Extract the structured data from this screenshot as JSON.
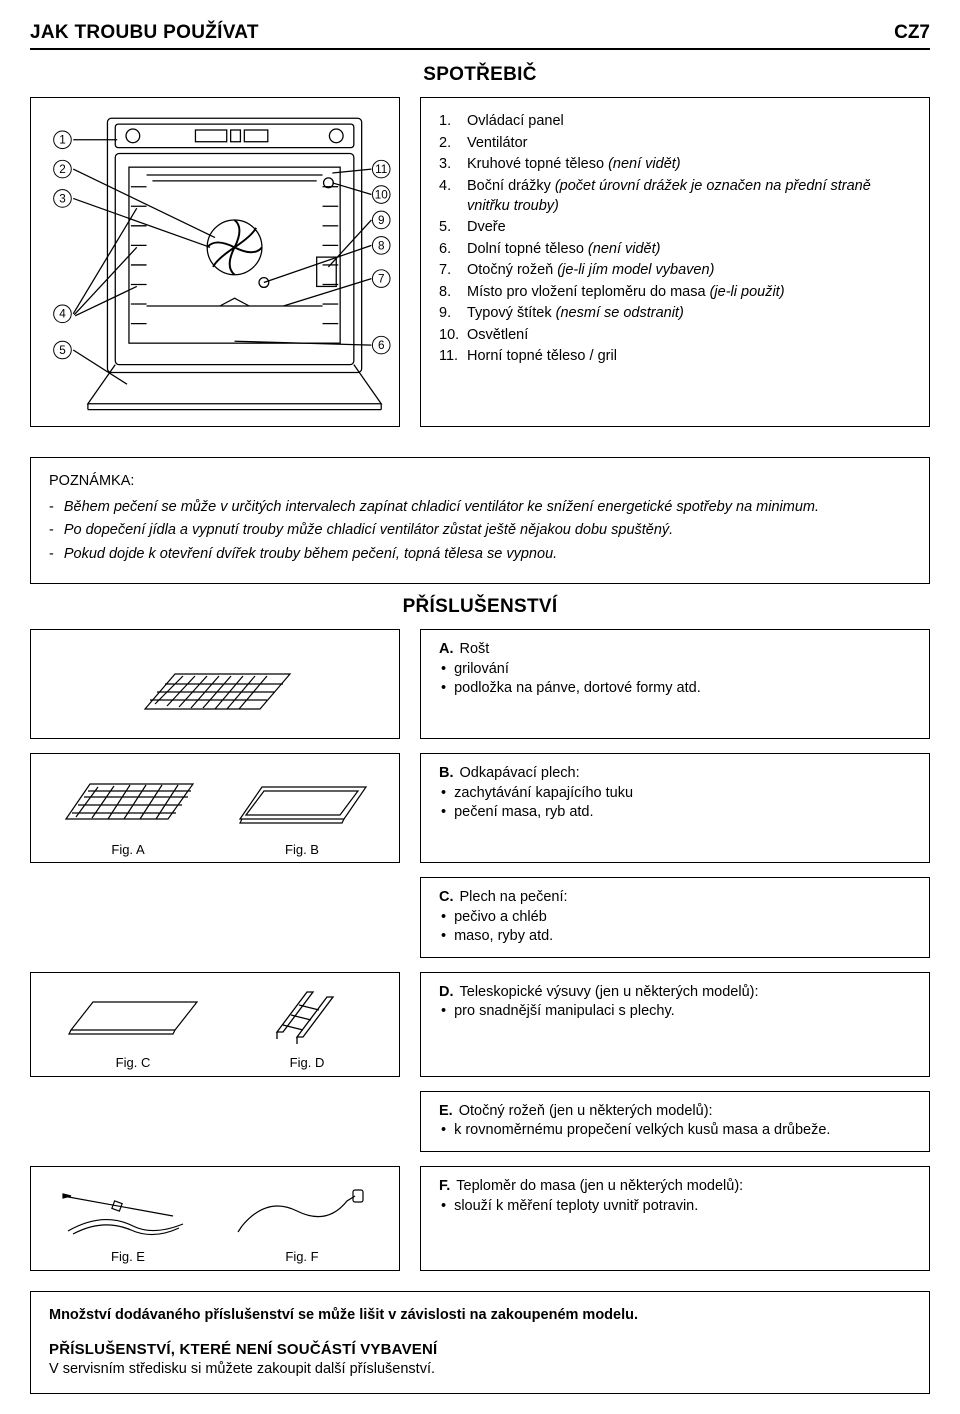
{
  "header": {
    "title": "JAK TROUBU POUŽÍVAT",
    "page": "CZ7"
  },
  "section_spotrebic": "SPOTŘEBIČ",
  "parts": [
    {
      "num": "1.",
      "text": "Ovládací panel"
    },
    {
      "num": "2.",
      "text": "Ventilátor"
    },
    {
      "num": "3.",
      "text": "Kruhové topné těleso ",
      "suffix_italic": "(není vidět)"
    },
    {
      "num": "4.",
      "text": "Boční drážky ",
      "suffix_italic": "(počet úrovní drážek je označen na přední straně vnitřku trouby)"
    },
    {
      "num": "5.",
      "text": "Dveře"
    },
    {
      "num": "6.",
      "text": "Dolní topné těleso ",
      "suffix_italic": "(není vidět)"
    },
    {
      "num": "7.",
      "text": "Otočný rožeň ",
      "suffix_italic": "(je-li jím model vybaven)"
    },
    {
      "num": "8.",
      "text": "Místo pro vložení teploměru do masa ",
      "suffix_italic": "(je-li použit)"
    },
    {
      "num": "9.",
      "text": "Typový štítek ",
      "suffix_italic": "(nesmí se odstranit)"
    },
    {
      "num": "10.",
      "text": "Osvětlení"
    },
    {
      "num": "11.",
      "text": "Horní topné těleso / gril"
    }
  ],
  "note": {
    "label": "POZNÁMKA:",
    "items": [
      "Během pečení se může v určitých intervalech zapínat chladicí ventilátor ke snížení energetické spotřeby na minimum.",
      "Po dopečení jídla a vypnutí trouby může chladicí ventilátor zůstat ještě nějakou dobu spuštěný.",
      "Pokud dojde k otevření dvířek trouby během pečení, topná tělesa se vypnou."
    ]
  },
  "section_accessories": "PŘÍSLUŠENSTVÍ",
  "acc": {
    "a": {
      "lead": "A.",
      "title": "Rošt",
      "items": [
        "grilování",
        "podložka na pánve, dortové formy atd."
      ]
    },
    "b": {
      "lead": "B.",
      "title": "Odkapávací plech:",
      "items": [
        "zachytávání kapajícího tuku",
        "pečení masa, ryb atd."
      ]
    },
    "c": {
      "lead": "C.",
      "title": "Plech na pečení:",
      "items": [
        "pečivo a chléb",
        "maso, ryby atd."
      ]
    },
    "d": {
      "lead": "D.",
      "title": "Teleskopické výsuvy (jen u některých modelů):",
      "items": [
        "pro snadnější manipulaci s plechy."
      ]
    },
    "e": {
      "lead": "E.",
      "title": "Otočný rožeň (jen u některých modelů):",
      "items": [
        "k rovnoměrnému propečení velkých kusů masa a drůbeže."
      ]
    },
    "f": {
      "lead": "F.",
      "title": "Teploměr do masa (jen u některých modelů):",
      "items": [
        "slouží k měření teploty uvnitř potravin."
      ]
    }
  },
  "fig_labels": {
    "a": "Fig. A",
    "b": "Fig. B",
    "c": "Fig. C",
    "d": "Fig. D",
    "e": "Fig. E",
    "f": "Fig. F"
  },
  "callouts": [
    "1",
    "2",
    "3",
    "4",
    "5",
    "6",
    "7",
    "8",
    "9",
    "10",
    "11"
  ],
  "footer": {
    "bold": "Množství dodávaného příslušenství se může lišit v závislosti na zakoupeném modelu.",
    "h3": "PŘÍSLUŠENSTVÍ, KTERÉ NENÍ SOUČÁSTÍ VYBAVENÍ",
    "text": "V servisním středisku si můžete zakoupit další příslušenství."
  },
  "colors": {
    "stroke": "#000000",
    "bg": "#ffffff"
  }
}
